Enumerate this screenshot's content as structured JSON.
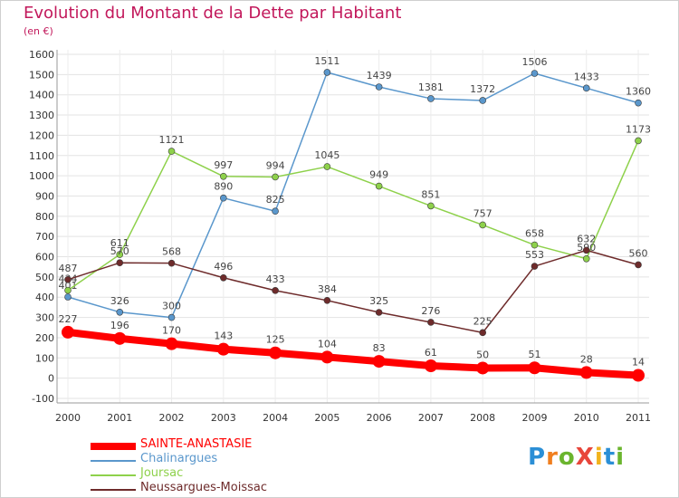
{
  "title": "Evolution du Montant de la Dette par Habitant",
  "unit": "(en €)",
  "logo_text": "ProXiti",
  "chart_data": {
    "type": "line",
    "title": "Evolution du Montant de la Dette par Habitant",
    "ylabel": "(en €)",
    "x": [
      "2000",
      "2001",
      "2002",
      "2003",
      "2004",
      "2005",
      "2006",
      "2007",
      "2008",
      "2009",
      "2010",
      "2011"
    ],
    "ylim": [
      -100,
      1600
    ],
    "yticks": [
      -100,
      0,
      100,
      200,
      300,
      400,
      500,
      600,
      700,
      800,
      900,
      1000,
      1100,
      1200,
      1300,
      1400,
      1500,
      1600
    ],
    "grid": true,
    "legend_position": "bottom-left",
    "series": [
      {
        "name": "SAINTE-ANASTASIE",
        "color": "#ff0000",
        "values": [
          227,
          196,
          170,
          143,
          125,
          104,
          83,
          61,
          50,
          51,
          28,
          14
        ]
      },
      {
        "name": "Chalinargues",
        "color": "#5a97cc",
        "values": [
          401,
          326,
          300,
          890,
          825,
          1511,
          1439,
          1381,
          1372,
          1506,
          1433,
          1360
        ]
      },
      {
        "name": "Joursac",
        "color": "#8ed14b",
        "values": [
          434,
          611,
          1121,
          997,
          994,
          1045,
          949,
          851,
          757,
          658,
          590,
          1173
        ]
      },
      {
        "name": "Neussargues-Moissac",
        "color": "#6e2b2b",
        "values": [
          487,
          570,
          568,
          496,
          433,
          384,
          325,
          276,
          225,
          553,
          632,
          560
        ]
      }
    ]
  }
}
